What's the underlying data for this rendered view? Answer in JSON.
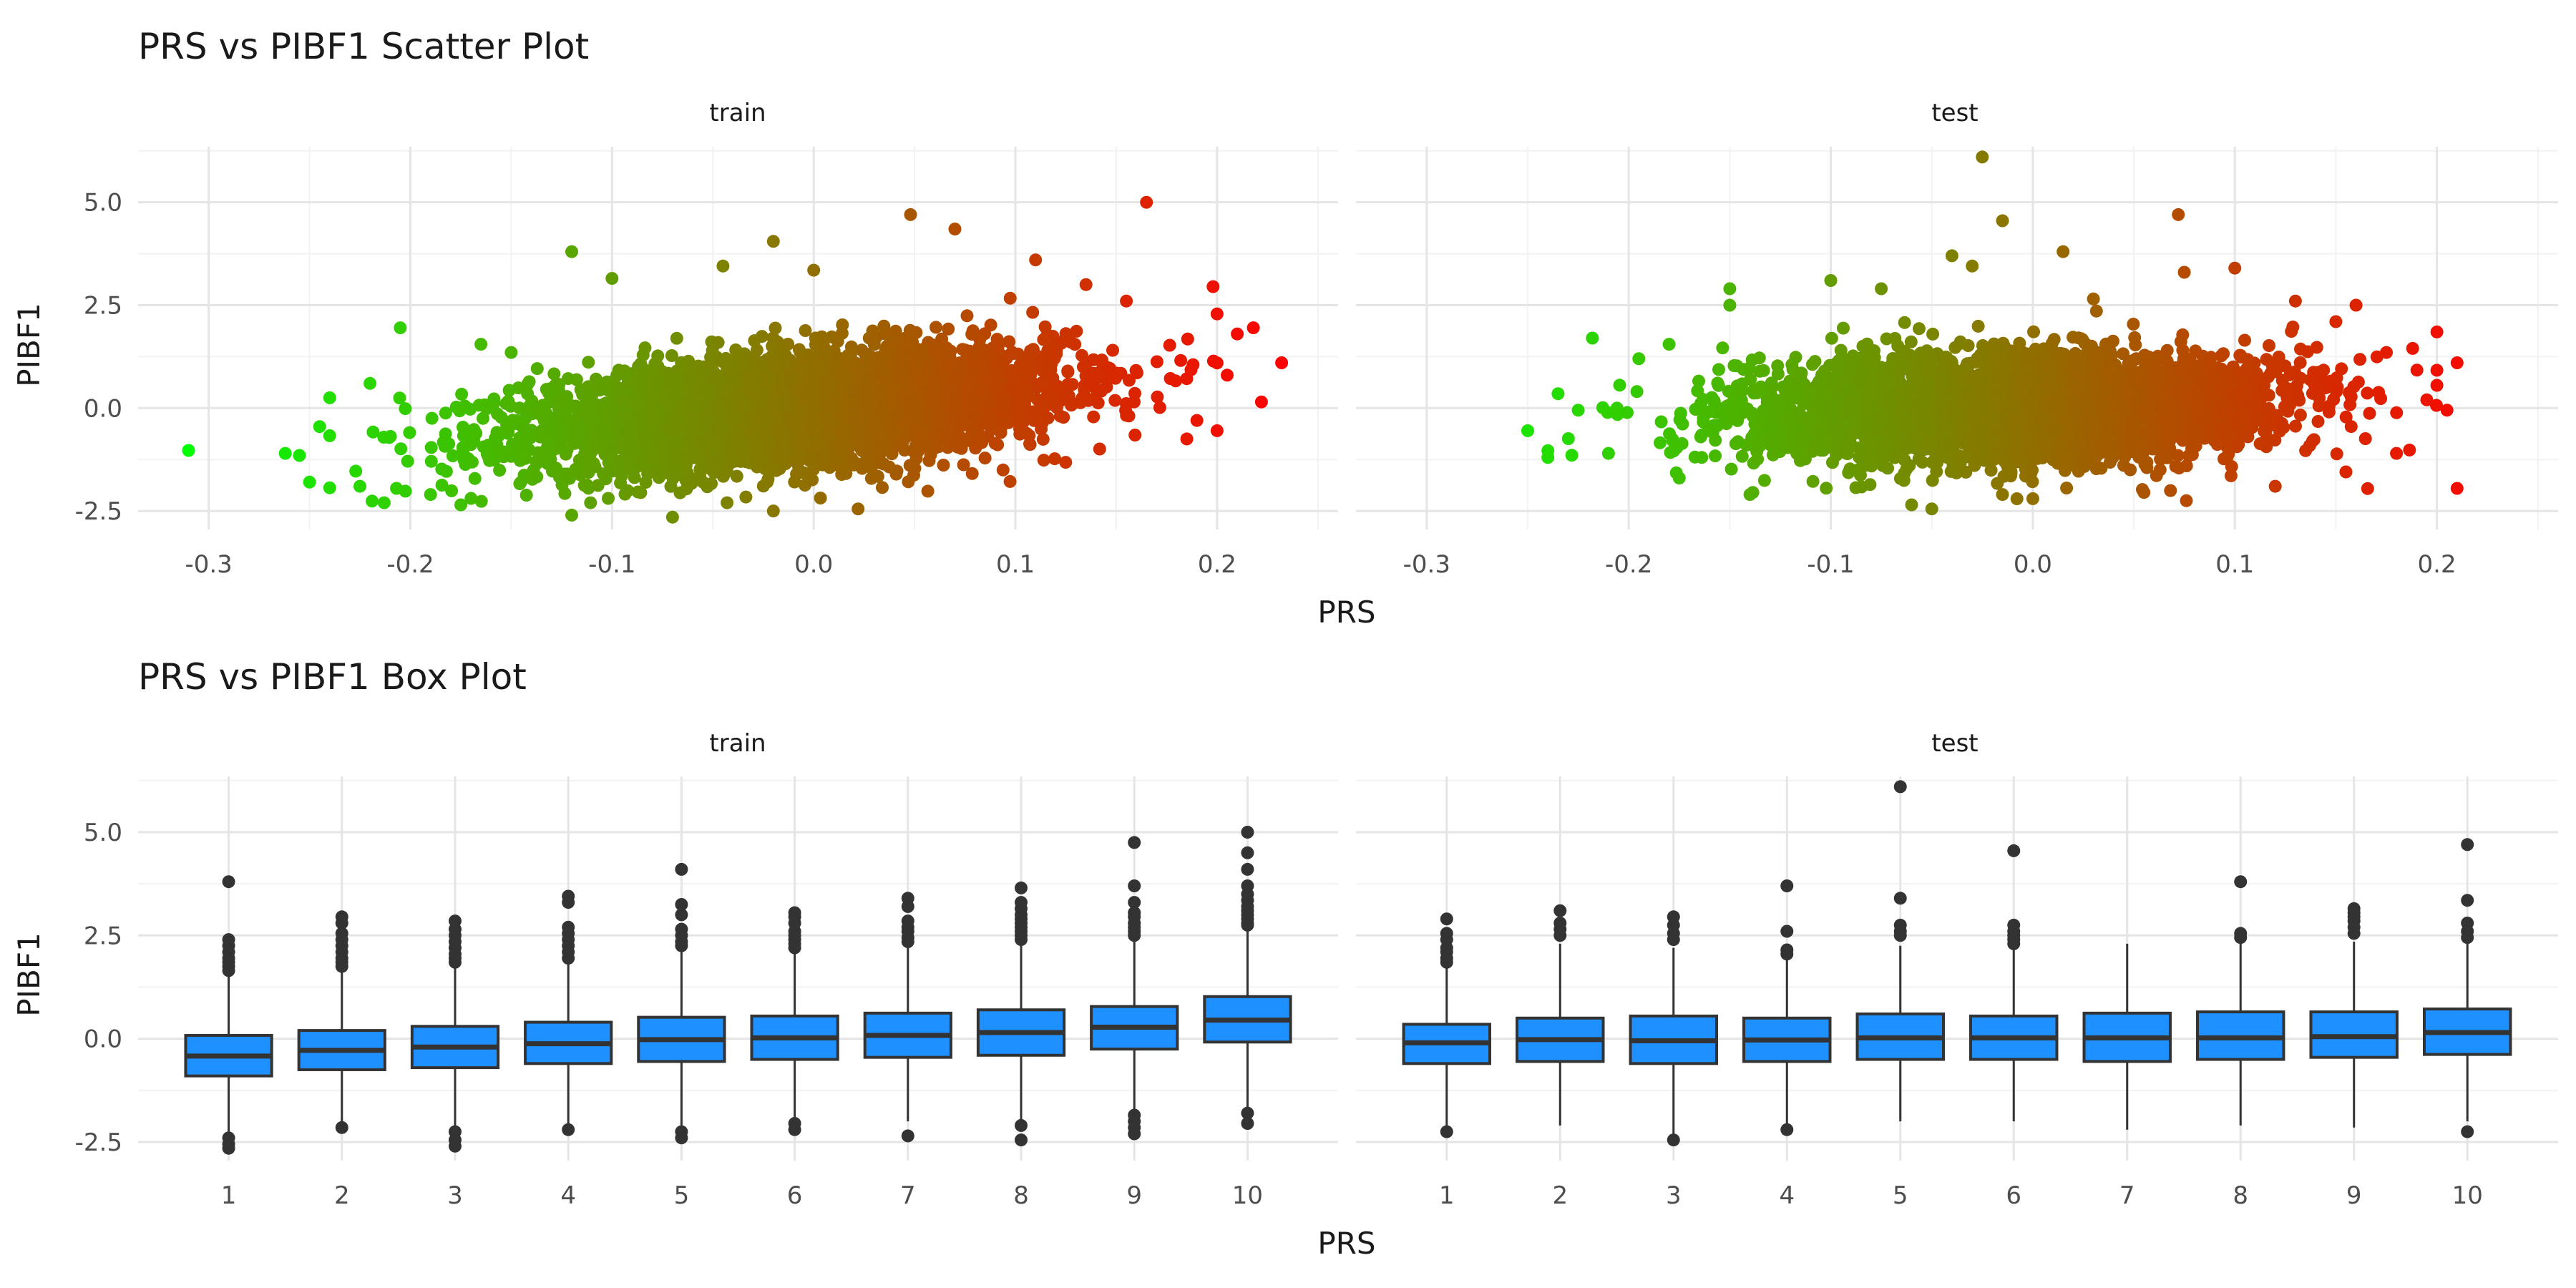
{
  "chart_data": [
    {
      "type": "scatter",
      "title": "PRS vs PIBF1 Scatter Plot",
      "xlabel": "PRS",
      "ylabel": "PIBF1",
      "xlim": [
        -0.335,
        0.26
      ],
      "ylim": [
        -2.95,
        6.35
      ],
      "xticks": [
        -0.3,
        -0.2,
        -0.1,
        0.0,
        0.1,
        0.2
      ],
      "xtick_labels": [
        "-0.3",
        "-0.2",
        "-0.1",
        "0.0",
        "0.1",
        "0.2"
      ],
      "yticks": [
        -2.5,
        0.0,
        2.5,
        5.0
      ],
      "ytick_labels": [
        "-2.5",
        "0.0",
        "2.5",
        "5.0"
      ],
      "grid": true,
      "color_scale": {
        "low": "#00ff00",
        "high": "#ff0000",
        "mapped_to": "PRS"
      },
      "facets": [
        {
          "label": "train",
          "n_generated_background": 4500,
          "slope": 4.2,
          "points": [
            {
              "x": -0.31,
              "y": -1.03
            },
            {
              "x": -0.262,
              "y": -1.1
            },
            {
              "x": -0.255,
              "y": -1.15
            },
            {
              "x": -0.25,
              "y": -1.8
            },
            {
              "x": -0.245,
              "y": -0.45
            },
            {
              "x": -0.24,
              "y": 0.25
            },
            {
              "x": -0.225,
              "y": -1.9
            },
            {
              "x": -0.22,
              "y": 0.6
            },
            {
              "x": -0.213,
              "y": -2.3
            },
            {
              "x": -0.205,
              "y": 1.95
            },
            {
              "x": -0.19,
              "y": -2.1
            },
            {
              "x": -0.175,
              "y": -2.35
            },
            {
              "x": -0.165,
              "y": 1.55
            },
            {
              "x": -0.15,
              "y": 1.35
            },
            {
              "x": -0.12,
              "y": 3.8
            },
            {
              "x": -0.12,
              "y": -2.6
            },
            {
              "x": -0.1,
              "y": 3.15
            },
            {
              "x": -0.07,
              "y": -2.65
            },
            {
              "x": -0.045,
              "y": 3.45
            },
            {
              "x": -0.02,
              "y": 4.05
            },
            {
              "x": -0.02,
              "y": -2.5
            },
            {
              "x": 0.0,
              "y": 3.35
            },
            {
              "x": 0.022,
              "y": -2.45
            },
            {
              "x": 0.048,
              "y": 4.7
            },
            {
              "x": 0.07,
              "y": 4.35
            },
            {
              "x": 0.11,
              "y": 3.6
            },
            {
              "x": 0.135,
              "y": 3.0
            },
            {
              "x": 0.155,
              "y": 2.6
            },
            {
              "x": 0.165,
              "y": 5.0
            },
            {
              "x": 0.185,
              "y": -0.75
            },
            {
              "x": 0.19,
              "y": -0.3
            },
            {
              "x": 0.198,
              "y": 2.95
            },
            {
              "x": 0.2,
              "y": -0.55
            },
            {
              "x": 0.205,
              "y": 0.8
            },
            {
              "x": 0.21,
              "y": 1.8
            },
            {
              "x": 0.218,
              "y": 1.95
            },
            {
              "x": 0.222,
              "y": 0.15
            },
            {
              "x": 0.232,
              "y": 1.1
            }
          ]
        },
        {
          "label": "test",
          "n_generated_background": 3800,
          "slope": 1.1,
          "points": [
            {
              "x": -0.25,
              "y": -0.55
            },
            {
              "x": -0.24,
              "y": -1.2
            },
            {
              "x": -0.235,
              "y": 0.35
            },
            {
              "x": -0.225,
              "y": -0.05
            },
            {
              "x": -0.218,
              "y": 1.7
            },
            {
              "x": -0.21,
              "y": -1.1
            },
            {
              "x": -0.195,
              "y": 1.2
            },
            {
              "x": -0.18,
              "y": 1.55
            },
            {
              "x": -0.175,
              "y": -1.7
            },
            {
              "x": -0.15,
              "y": 2.9
            },
            {
              "x": -0.15,
              "y": 2.5
            },
            {
              "x": -0.14,
              "y": -2.1
            },
            {
              "x": -0.1,
              "y": 3.1
            },
            {
              "x": -0.075,
              "y": 2.9
            },
            {
              "x": -0.06,
              "y": -2.35
            },
            {
              "x": -0.05,
              "y": -2.45
            },
            {
              "x": -0.04,
              "y": 3.7
            },
            {
              "x": -0.03,
              "y": 3.45
            },
            {
              "x": -0.025,
              "y": 6.1
            },
            {
              "x": -0.015,
              "y": -2.1
            },
            {
              "x": -0.015,
              "y": 4.55
            },
            {
              "x": 0.0,
              "y": -2.2
            },
            {
              "x": 0.015,
              "y": 3.8
            },
            {
              "x": 0.03,
              "y": 2.65
            },
            {
              "x": 0.055,
              "y": -2.05
            },
            {
              "x": 0.072,
              "y": 4.7
            },
            {
              "x": 0.075,
              "y": 3.3
            },
            {
              "x": 0.076,
              "y": -2.25
            },
            {
              "x": 0.1,
              "y": 3.4
            },
            {
              "x": 0.12,
              "y": -1.9
            },
            {
              "x": 0.13,
              "y": 2.6
            },
            {
              "x": 0.15,
              "y": 2.1
            },
            {
              "x": 0.155,
              "y": -1.55
            },
            {
              "x": 0.16,
              "y": 2.5
            },
            {
              "x": 0.175,
              "y": 1.35
            },
            {
              "x": 0.18,
              "y": -1.1
            },
            {
              "x": 0.188,
              "y": 1.45
            },
            {
              "x": 0.195,
              "y": 0.2
            },
            {
              "x": 0.2,
              "y": 1.85
            },
            {
              "x": 0.205,
              "y": -0.05
            },
            {
              "x": 0.21,
              "y": -1.95
            },
            {
              "x": 0.21,
              "y": 1.1
            }
          ]
        }
      ]
    },
    {
      "type": "box",
      "title": "PRS vs PIBF1 Box Plot",
      "xlabel": "PRS",
      "ylabel": "PIBF1",
      "categories": [
        "1",
        "2",
        "3",
        "4",
        "5",
        "6",
        "7",
        "8",
        "9",
        "10"
      ],
      "ylim": [
        -2.95,
        6.35
      ],
      "yticks": [
        -2.5,
        0.0,
        2.5,
        5.0
      ],
      "ytick_labels": [
        "-2.5",
        "0.0",
        "2.5",
        "5.0"
      ],
      "grid": true,
      "box_fill": "#1e90ff",
      "box_stroke": "#333333",
      "facets": [
        {
          "label": "train",
          "boxes": [
            {
              "q1": -0.9,
              "median": -0.42,
              "q3": 0.08,
              "whisker_low": -2.3,
              "whisker_high": 1.55,
              "outliers": [
                3.8,
                2.4,
                2.25,
                2.1,
                1.95,
                1.85,
                1.75,
                1.65,
                -2.4,
                -2.55,
                -2.65
              ]
            },
            {
              "q1": -0.75,
              "median": -0.28,
              "q3": 0.2,
              "whisker_low": -2.1,
              "whisker_high": 1.65,
              "outliers": [
                2.95,
                2.8,
                2.55,
                2.4,
                2.25,
                2.1,
                1.95,
                1.85,
                1.75,
                -2.15
              ]
            },
            {
              "q1": -0.7,
              "median": -0.2,
              "q3": 0.3,
              "whisker_low": -2.15,
              "whisker_high": 1.75,
              "outliers": [
                2.85,
                2.65,
                2.5,
                2.35,
                2.2,
                2.05,
                1.95,
                1.85,
                -2.25,
                -2.45,
                -2.6
              ]
            },
            {
              "q1": -0.6,
              "median": -0.12,
              "q3": 0.4,
              "whisker_low": -2.1,
              "whisker_high": 1.85,
              "outliers": [
                3.45,
                3.3,
                2.7,
                2.55,
                2.4,
                2.25,
                2.1,
                1.95,
                -2.2
              ]
            },
            {
              "q1": -0.55,
              "median": -0.02,
              "q3": 0.52,
              "whisker_low": -2.1,
              "whisker_high": 2.1,
              "outliers": [
                4.1,
                3.25,
                3.0,
                2.65,
                2.5,
                2.35,
                2.25,
                -2.25,
                -2.4
              ]
            },
            {
              "q1": -0.5,
              "median": 0.02,
              "q3": 0.55,
              "whisker_low": -2.0,
              "whisker_high": 2.1,
              "outliers": [
                3.05,
                2.95,
                2.8,
                2.6,
                2.5,
                2.4,
                2.3,
                2.2,
                -2.05,
                -2.2
              ]
            },
            {
              "q1": -0.45,
              "median": 0.08,
              "q3": 0.62,
              "whisker_low": -2.0,
              "whisker_high": 2.2,
              "outliers": [
                3.4,
                3.2,
                2.85,
                2.7,
                2.6,
                2.45,
                2.35,
                -2.35
              ]
            },
            {
              "q1": -0.4,
              "median": 0.15,
              "q3": 0.7,
              "whisker_low": -2.0,
              "whisker_high": 2.3,
              "outliers": [
                3.65,
                3.3,
                3.15,
                3.0,
                2.9,
                2.8,
                2.7,
                2.6,
                2.5,
                2.4,
                -2.1,
                -2.45
              ]
            },
            {
              "q1": -0.25,
              "median": 0.28,
              "q3": 0.78,
              "whisker_low": -1.7,
              "whisker_high": 2.4,
              "outliers": [
                4.75,
                3.7,
                3.3,
                3.05,
                2.95,
                2.8,
                2.7,
                2.6,
                2.5,
                -1.85,
                -2.0,
                -2.15,
                -2.3
              ]
            },
            {
              "q1": -0.08,
              "median": 0.45,
              "q3": 1.02,
              "whisker_low": -1.7,
              "whisker_high": 2.65,
              "outliers": [
                5.0,
                4.5,
                4.1,
                3.7,
                3.5,
                3.35,
                3.2,
                3.1,
                3.0,
                2.9,
                2.8,
                2.75,
                -1.8,
                -2.05
              ]
            }
          ]
        },
        {
          "label": "test",
          "boxes": [
            {
              "q1": -0.6,
              "median": -0.1,
              "q3": 0.35,
              "whisker_low": -2.15,
              "whisker_high": 1.75,
              "outliers": [
                2.9,
                2.55,
                2.4,
                2.2,
                2.1,
                1.95,
                1.85,
                -2.25
              ]
            },
            {
              "q1": -0.55,
              "median": -0.02,
              "q3": 0.5,
              "whisker_low": -2.1,
              "whisker_high": 2.3,
              "outliers": [
                3.1,
                2.8,
                2.65,
                2.5
              ]
            },
            {
              "q1": -0.6,
              "median": -0.05,
              "q3": 0.55,
              "whisker_low": -2.3,
              "whisker_high": 2.2,
              "outliers": [
                2.95,
                2.75,
                2.55,
                2.4,
                -2.45
              ]
            },
            {
              "q1": -0.55,
              "median": -0.03,
              "q3": 0.5,
              "whisker_low": -2.1,
              "whisker_high": 1.95,
              "outliers": [
                3.7,
                2.6,
                2.15,
                2.05,
                -2.2
              ]
            },
            {
              "q1": -0.5,
              "median": 0.02,
              "q3": 0.6,
              "whisker_low": -2.0,
              "whisker_high": 2.25,
              "outliers": [
                6.1,
                3.4,
                2.75,
                2.6,
                2.5
              ]
            },
            {
              "q1": -0.5,
              "median": 0.02,
              "q3": 0.55,
              "whisker_low": -2.0,
              "whisker_high": 2.15,
              "outliers": [
                4.55,
                2.75,
                2.6,
                2.5,
                2.4,
                2.3
              ]
            },
            {
              "q1": -0.55,
              "median": 0.02,
              "q3": 0.62,
              "whisker_low": -2.2,
              "whisker_high": 2.3,
              "outliers": []
            },
            {
              "q1": -0.5,
              "median": 0.02,
              "q3": 0.65,
              "whisker_low": -2.1,
              "whisker_high": 2.4,
              "outliers": [
                3.8,
                2.55,
                2.45
              ]
            },
            {
              "q1": -0.45,
              "median": 0.05,
              "q3": 0.65,
              "whisker_low": -2.15,
              "whisker_high": 2.35,
              "outliers": [
                3.15,
                3.05,
                2.95,
                2.85,
                2.7,
                2.55
              ]
            },
            {
              "q1": -0.38,
              "median": 0.15,
              "q3": 0.72,
              "whisker_low": -2.0,
              "whisker_high": 2.3,
              "outliers": [
                4.7,
                3.35,
                2.8,
                2.6,
                2.45,
                -2.25
              ]
            }
          ]
        }
      ]
    }
  ]
}
